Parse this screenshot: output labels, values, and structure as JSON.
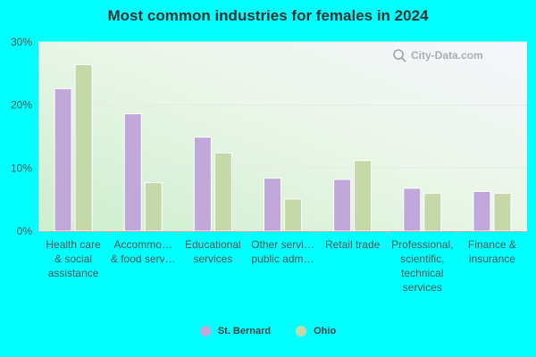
{
  "chart_data": {
    "type": "bar",
    "title": "Most common industries for females in 2024",
    "categories": [
      [
        "Health care",
        "& social",
        "assistance"
      ],
      [
        "Accommo…",
        "& food serv…"
      ],
      [
        "Educational",
        "services"
      ],
      [
        "Other servi…",
        "public adm…"
      ],
      [
        "Retail trade"
      ],
      [
        "Professional,",
        "scientific,",
        "technical",
        "services"
      ],
      [
        "Finance &",
        "insurance"
      ]
    ],
    "series": [
      {
        "name": "St. Bernard",
        "color": "#c0a8db",
        "values": [
          22.6,
          18.6,
          14.9,
          8.4,
          8.2,
          6.8,
          6.3
        ]
      },
      {
        "name": "Ohio",
        "color": "#c5d9a8",
        "values": [
          26.4,
          7.7,
          12.4,
          5.1,
          11.2,
          6.0,
          6.0
        ]
      }
    ],
    "yticks": [
      "0%",
      "10%",
      "20%",
      "30%"
    ],
    "ytick_values": [
      0,
      10,
      20,
      30
    ],
    "ylim": [
      0,
      30
    ],
    "grid": true,
    "legend_position": "bottom"
  },
  "watermark": "City-Data.com"
}
